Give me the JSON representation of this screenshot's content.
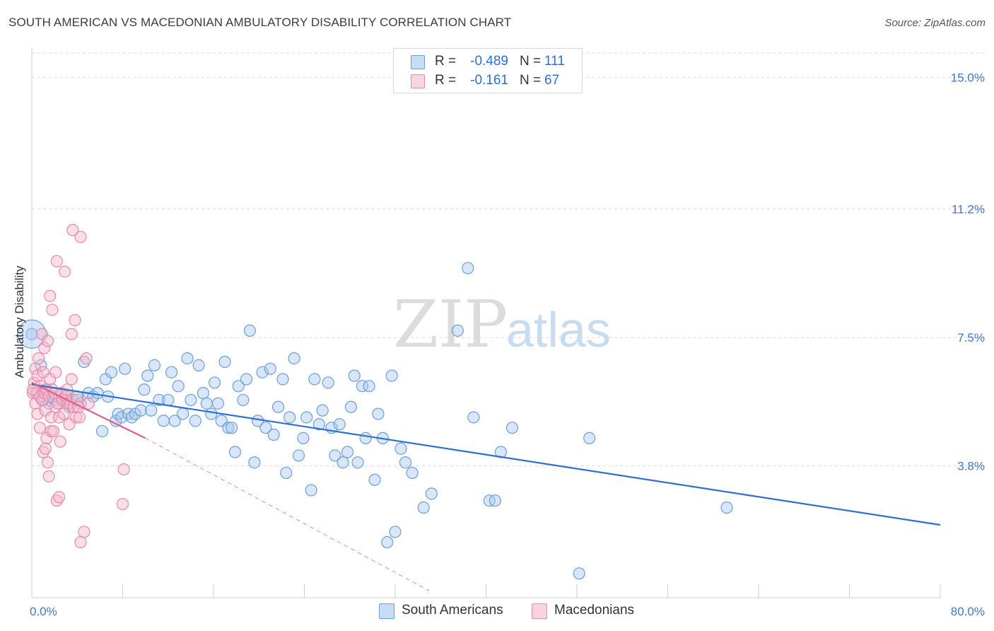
{
  "header": {
    "title": "SOUTH AMERICAN VS MACEDONIAN AMBULATORY DISABILITY CORRELATION CHART",
    "source": "Source: ZipAtlas.com"
  },
  "watermark": {
    "zip": "ZIP",
    "atlas": "atlas"
  },
  "legend": {
    "rows": [
      {
        "r_label": "R =",
        "r_value": "-0.489",
        "n_label": "N =",
        "n_value": "111",
        "color": "#a8c8f0",
        "border": "#6a9fd8"
      },
      {
        "r_label": "R =",
        "r_value": "-0.161",
        "n_label": "N =",
        "n_value": "67",
        "color": "#f7b8cc",
        "border": "#e889a8"
      }
    ]
  },
  "bottom_legend": [
    {
      "label": "South Americans",
      "color": "#a8c8f0",
      "border": "#6a9fd8"
    },
    {
      "label": "Macedonians",
      "color": "#f7b8cc",
      "border": "#e889a8"
    }
  ],
  "chart_data": {
    "type": "scatter",
    "title": "SOUTH AMERICAN VS MACEDONIAN AMBULATORY DISABILITY CORRELATION CHART",
    "xlabel": "",
    "ylabel": "Ambulatory Disability",
    "xlim": [
      0,
      80
    ],
    "ylim": [
      0,
      15.7
    ],
    "x_tick_labels": [
      {
        "value": 0,
        "label": "0.0%"
      },
      {
        "value": 80,
        "label": "80.0%"
      }
    ],
    "y_tick_labels": [
      {
        "value": 3.8,
        "label": "3.8%"
      },
      {
        "value": 7.5,
        "label": "7.5%"
      },
      {
        "value": 11.2,
        "label": "11.2%"
      },
      {
        "value": 15.0,
        "label": "15.0%"
      }
    ],
    "grid": "horizontal dashed",
    "series": [
      {
        "name": "South Americans",
        "color": "#a8c8f0",
        "edge": "#6a9fd8",
        "trend": {
          "x": [
            0,
            80
          ],
          "y": [
            6.15,
            2.1
          ],
          "color": "#2f6fcf"
        },
        "points": [
          [
            0,
            7.6
          ],
          [
            0.5,
            5.9
          ],
          [
            0.8,
            6.7
          ],
          [
            1,
            5.7
          ],
          [
            1.2,
            6.0
          ],
          [
            1.5,
            5.6
          ],
          [
            1.8,
            5.8
          ],
          [
            2,
            5.7
          ],
          [
            2.3,
            5.6
          ],
          [
            2.6,
            5.9
          ],
          [
            3,
            5.7
          ],
          [
            3.3,
            5.5
          ],
          [
            3.6,
            5.7
          ],
          [
            4,
            5.8
          ],
          [
            4.3,
            5.6
          ],
          [
            4.6,
            6.8
          ],
          [
            5,
            5.9
          ],
          [
            5.4,
            5.8
          ],
          [
            5.8,
            5.9
          ],
          [
            6.2,
            4.8
          ],
          [
            6.5,
            6.3
          ],
          [
            6.7,
            5.8
          ],
          [
            7,
            6.5
          ],
          [
            7.4,
            5.1
          ],
          [
            7.6,
            5.3
          ],
          [
            7.9,
            5.2
          ],
          [
            8.2,
            6.6
          ],
          [
            8.5,
            5.3
          ],
          [
            8.8,
            5.2
          ],
          [
            9.1,
            5.3
          ],
          [
            9.6,
            5.4
          ],
          [
            9.9,
            6.0
          ],
          [
            10.2,
            6.4
          ],
          [
            10.5,
            5.4
          ],
          [
            10.8,
            6.7
          ],
          [
            11.2,
            5.7
          ],
          [
            11.6,
            5.1
          ],
          [
            12,
            5.7
          ],
          [
            12.3,
            6.5
          ],
          [
            12.6,
            5.1
          ],
          [
            12.9,
            6.1
          ],
          [
            13.3,
            5.3
          ],
          [
            13.7,
            6.9
          ],
          [
            14,
            5.7
          ],
          [
            14.4,
            5.1
          ],
          [
            14.7,
            6.7
          ],
          [
            15.1,
            5.9
          ],
          [
            15.4,
            5.6
          ],
          [
            15.8,
            5.3
          ],
          [
            16.1,
            6.2
          ],
          [
            16.4,
            5.6
          ],
          [
            16.7,
            5.1
          ],
          [
            17,
            6.8
          ],
          [
            17.3,
            4.9
          ],
          [
            17.6,
            4.9
          ],
          [
            17.9,
            4.2
          ],
          [
            18.2,
            6.1
          ],
          [
            18.6,
            5.7
          ],
          [
            18.9,
            6.3
          ],
          [
            19.2,
            7.7
          ],
          [
            19.6,
            3.9
          ],
          [
            19.9,
            5.1
          ],
          [
            20.3,
            6.5
          ],
          [
            20.6,
            4.9
          ],
          [
            21,
            6.6
          ],
          [
            21.3,
            4.7
          ],
          [
            21.7,
            5.5
          ],
          [
            22.1,
            6.3
          ],
          [
            22.4,
            3.6
          ],
          [
            22.7,
            5.2
          ],
          [
            23.1,
            6.9
          ],
          [
            23.5,
            4.1
          ],
          [
            23.9,
            4.6
          ],
          [
            24.2,
            5.2
          ],
          [
            24.6,
            3.1
          ],
          [
            24.9,
            6.3
          ],
          [
            25.3,
            5.0
          ],
          [
            25.6,
            5.4
          ],
          [
            26.1,
            6.2
          ],
          [
            26.4,
            4.9
          ],
          [
            26.7,
            4.1
          ],
          [
            27.1,
            5.0
          ],
          [
            27.4,
            3.9
          ],
          [
            27.8,
            4.2
          ],
          [
            28.1,
            5.5
          ],
          [
            28.4,
            6.4
          ],
          [
            28.7,
            3.9
          ],
          [
            29.1,
            6.1
          ],
          [
            29.4,
            4.6
          ],
          [
            29.7,
            6.1
          ],
          [
            30.2,
            3.4
          ],
          [
            30.5,
            5.3
          ],
          [
            30.9,
            4.6
          ],
          [
            31.3,
            1.6
          ],
          [
            31.7,
            6.4
          ],
          [
            32,
            1.9
          ],
          [
            32.5,
            4.3
          ],
          [
            32.9,
            3.9
          ],
          [
            33.5,
            3.6
          ],
          [
            34.5,
            2.6
          ],
          [
            35.2,
            3.0
          ],
          [
            37.5,
            7.7
          ],
          [
            38.4,
            9.5
          ],
          [
            38.9,
            5.2
          ],
          [
            40.3,
            2.8
          ],
          [
            40.8,
            2.8
          ],
          [
            41.3,
            4.2
          ],
          [
            42.3,
            4.9
          ],
          [
            48.2,
            0.7
          ],
          [
            49.1,
            4.6
          ],
          [
            61.2,
            2.6
          ]
        ]
      },
      {
        "name": "Macedonians",
        "color": "#f7b8cc",
        "edge": "#e889a8",
        "trend": {
          "x": [
            0,
            10
          ],
          "y": [
            6.2,
            4.6
          ],
          "color": "#e0608a",
          "dashed_extension": {
            "x": [
              10,
              35
            ],
            "y": [
              4.6,
              0.2
            ]
          }
        },
        "points": [
          [
            0.1,
            5.9
          ],
          [
            0.2,
            6.2
          ],
          [
            0.3,
            5.6
          ],
          [
            0.3,
            6.6
          ],
          [
            0.4,
            5.9
          ],
          [
            0.5,
            6.4
          ],
          [
            0.5,
            5.3
          ],
          [
            0.6,
            6.9
          ],
          [
            0.7,
            5.8
          ],
          [
            0.7,
            4.9
          ],
          [
            0.8,
            6.1
          ],
          [
            0.9,
            7.6
          ],
          [
            0.9,
            5.7
          ],
          [
            1.0,
            6.5
          ],
          [
            1.0,
            4.2
          ],
          [
            1.1,
            5.9
          ],
          [
            1.1,
            7.2
          ],
          [
            1.2,
            4.3
          ],
          [
            1.2,
            5.4
          ],
          [
            1.3,
            6.0
          ],
          [
            1.3,
            4.6
          ],
          [
            1.4,
            3.9
          ],
          [
            1.4,
            7.4
          ],
          [
            1.5,
            3.5
          ],
          [
            1.5,
            5.8
          ],
          [
            1.6,
            8.7
          ],
          [
            1.6,
            6.3
          ],
          [
            1.7,
            4.8
          ],
          [
            1.7,
            5.2
          ],
          [
            1.8,
            8.3
          ],
          [
            1.8,
            6.0
          ],
          [
            1.9,
            4.8
          ],
          [
            2.0,
            5.9
          ],
          [
            2.1,
            5.5
          ],
          [
            2.1,
            6.5
          ],
          [
            2.2,
            2.8
          ],
          [
            2.2,
            9.7
          ],
          [
            2.3,
            5.6
          ],
          [
            2.4,
            2.9
          ],
          [
            2.4,
            5.2
          ],
          [
            2.5,
            4.5
          ],
          [
            2.6,
            5.9
          ],
          [
            2.7,
            5.7
          ],
          [
            2.8,
            5.3
          ],
          [
            2.9,
            9.4
          ],
          [
            3.0,
            5.8
          ],
          [
            3.1,
            6.0
          ],
          [
            3.2,
            5.6
          ],
          [
            3.3,
            5.0
          ],
          [
            3.4,
            5.6
          ],
          [
            3.5,
            6.3
          ],
          [
            3.5,
            7.6
          ],
          [
            3.6,
            10.6
          ],
          [
            3.7,
            5.5
          ],
          [
            3.8,
            8.0
          ],
          [
            3.9,
            5.2
          ],
          [
            4.0,
            5.7
          ],
          [
            4.1,
            5.5
          ],
          [
            4.2,
            5.2
          ],
          [
            4.3,
            10.4
          ],
          [
            4.3,
            1.6
          ],
          [
            4.6,
            1.9
          ],
          [
            4.8,
            6.9
          ],
          [
            5.0,
            5.6
          ],
          [
            8.0,
            2.7
          ],
          [
            8.1,
            3.7
          ],
          [
            0.1,
            6.0
          ]
        ]
      }
    ]
  }
}
